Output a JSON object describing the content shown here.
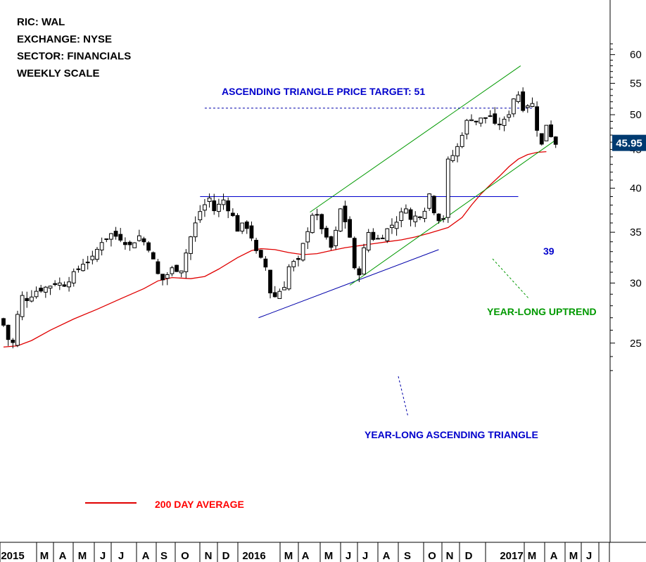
{
  "info": {
    "lines": [
      "RIC: WAL",
      "EXCHANGE: NYSE",
      "SECTOR: FINANCIALS",
      "WEEKLY SCALE"
    ]
  },
  "chart_data": {
    "type": "candlestick",
    "y_scale": "log",
    "ylim": [
      22.5,
      63
    ],
    "y_ticks": [
      25,
      30,
      35,
      40,
      45,
      50,
      55,
      60
    ],
    "x_ticks": [
      "2015",
      "M",
      "A",
      "M",
      "J",
      "J",
      "A",
      "S",
      "O",
      "N",
      "D",
      "2016",
      "M",
      "A",
      "M",
      "J",
      "J",
      "A",
      "S",
      "O",
      "N",
      "D",
      "2017",
      "M",
      "A",
      "M",
      "J"
    ],
    "last_price": {
      "label": "45.95",
      "value": 45.95,
      "color": "#003a70"
    },
    "series": [
      {
        "name": "Price",
        "kind": "candles",
        "start_week": 0
      },
      {
        "name": "200 DAY AVERAGE",
        "kind": "line",
        "color": "#e00000",
        "values": [
          [
            0,
            24.7
          ],
          [
            3,
            24.8
          ],
          [
            6,
            25.2
          ],
          [
            10,
            26.0
          ],
          [
            15,
            26.9
          ],
          [
            20,
            27.7
          ],
          [
            25,
            28.6
          ],
          [
            30,
            29.5
          ],
          [
            33,
            30.2
          ],
          [
            36,
            30.5
          ],
          [
            40,
            30.4
          ],
          [
            43,
            30.6
          ],
          [
            46,
            31.3
          ],
          [
            50,
            32.4
          ],
          [
            53,
            33.1
          ],
          [
            55,
            33.3
          ],
          [
            58,
            33.2
          ],
          [
            61,
            32.9
          ],
          [
            64,
            32.7
          ],
          [
            67,
            32.8
          ],
          [
            70,
            33.1
          ],
          [
            73,
            33.4
          ],
          [
            76,
            33.6
          ],
          [
            79,
            33.8
          ],
          [
            82,
            34.0
          ],
          [
            85,
            34.2
          ],
          [
            88,
            34.5
          ],
          [
            91,
            34.9
          ],
          [
            93,
            35.2
          ],
          [
            95,
            35.5
          ],
          [
            98,
            36.6
          ],
          [
            100,
            38.0
          ],
          [
            102,
            39.3
          ],
          [
            104,
            40.4
          ],
          [
            106,
            41.5
          ],
          [
            108,
            42.7
          ],
          [
            110,
            43.7
          ],
          [
            112,
            44.3
          ],
          [
            114,
            44.6
          ],
          [
            116,
            44.7
          ]
        ]
      }
    ],
    "trendlines": [
      {
        "name": "ascending-triangle-support",
        "color": "#0000aa",
        "from": [
          54.5,
          27.0
        ],
        "to": [
          93,
          33.2
        ]
      },
      {
        "name": "channel-lower",
        "color": "#009900",
        "from": [
          74,
          29.8
        ],
        "to": [
          118,
          46.3
        ]
      },
      {
        "name": "channel-upper",
        "color": "#009900",
        "from": [
          65.5,
          37.2
        ],
        "to": [
          110.5,
          58.0
        ]
      },
      {
        "name": "resistance-39",
        "color": "#0000cc",
        "from": [
          42,
          39.0
        ],
        "to": [
          110,
          39.0
        ]
      },
      {
        "name": "price-target-51",
        "color": "#0000aa",
        "dashed": true,
        "from": [
          43,
          51.0
        ],
        "to": [
          113,
          51.0
        ]
      }
    ],
    "annotations": [
      {
        "text": "ASCENDING TRIANGLE PRICE TARGET: 51",
        "color": "blue"
      },
      {
        "text": "39",
        "color": "blue"
      },
      {
        "text": "YEAR-LONG UPTREND",
        "color": "green"
      },
      {
        "text": "YEAR-LONG ASCENDING TRIANGLE",
        "color": "blue"
      },
      {
        "text": "200 DAY AVERAGE",
        "color": "red"
      }
    ]
  }
}
